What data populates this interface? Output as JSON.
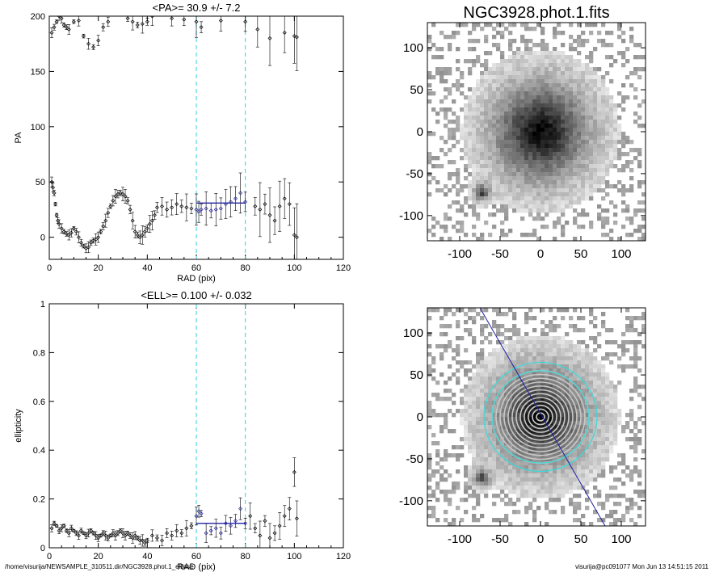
{
  "footer": {
    "path": "/home/visurija/NEWSAMPLE_310511.dir/NGC3928.phot.1_ellipse",
    "stamp": "visurija@pc091077  Mon Jun 13 14:51:15 2011"
  },
  "chart_data": [
    {
      "type": "scatter",
      "title": "<PA>=  30.9 +/-   7.2",
      "xlabel": "RAD (pix)",
      "ylabel": "PA",
      "xlim": [
        0,
        120
      ],
      "ylim": [
        -20,
        200
      ],
      "xticks": [
        0,
        20,
        40,
        60,
        80,
        100,
        120
      ],
      "yticks": [
        0,
        50,
        100,
        150,
        200
      ],
      "vlines": [
        60,
        80
      ],
      "fit": {
        "x": [
          60,
          80
        ],
        "y": 30.9
      },
      "series": [
        {
          "values": [
            [
              1,
              50
            ],
            [
              1.5,
              45
            ],
            [
              2,
              40
            ],
            [
              2.5,
              30
            ],
            [
              3,
              20
            ],
            [
              3.5,
              15
            ],
            [
              4,
              12
            ],
            [
              5,
              8
            ],
            [
              6,
              5
            ],
            [
              7,
              3
            ],
            [
              8,
              2
            ],
            [
              9,
              4
            ],
            [
              10,
              8
            ],
            [
              11,
              5
            ],
            [
              12,
              0
            ],
            [
              13,
              -5
            ],
            [
              14,
              -8
            ],
            [
              15,
              -10
            ],
            [
              16,
              -9
            ],
            [
              17,
              -5
            ],
            [
              18,
              -3
            ],
            [
              19,
              -2
            ],
            [
              20,
              0
            ],
            [
              21,
              5
            ],
            [
              22,
              10
            ],
            [
              23,
              15
            ],
            [
              24,
              22
            ],
            [
              25,
              28
            ],
            [
              26,
              33
            ],
            [
              27,
              37
            ],
            [
              28,
              39
            ],
            [
              29,
              40
            ],
            [
              30,
              39
            ],
            [
              31,
              37
            ],
            [
              32,
              33
            ],
            [
              33,
              25
            ],
            [
              34,
              15
            ],
            [
              35,
              5
            ],
            [
              36,
              2
            ],
            [
              37,
              0
            ],
            [
              38,
              2
            ],
            [
              39,
              5
            ],
            [
              40,
              8
            ],
            [
              41,
              12
            ],
            [
              42,
              15
            ],
            [
              43,
              20
            ],
            [
              44,
              27
            ],
            [
              46,
              28
            ],
            [
              48,
              25
            ],
            [
              50,
              27
            ],
            [
              52,
              30
            ],
            [
              54,
              28
            ],
            [
              56,
              27
            ],
            [
              58,
              26
            ],
            [
              60,
              25
            ],
            [
              61,
              23
            ],
            [
              62,
              25
            ],
            [
              64,
              26
            ],
            [
              66,
              24
            ],
            [
              68,
              25
            ],
            [
              70,
              26
            ],
            [
              72,
              30
            ],
            [
              74,
              32
            ],
            [
              76,
              35
            ],
            [
              78,
              40
            ],
            [
              80,
              32
            ],
            [
              84,
              28
            ],
            [
              86,
              25
            ],
            [
              88,
              30
            ],
            [
              90,
              20
            ],
            [
              92,
              15
            ],
            [
              94,
              28
            ],
            [
              96,
              35
            ],
            [
              98,
              30
            ],
            [
              100,
              2
            ],
            [
              101,
              0
            ]
          ]
        },
        {
          "values": [
            [
              1,
              185
            ],
            [
              2,
              190
            ],
            [
              3,
              195
            ],
            [
              4,
              200
            ],
            [
              5,
              198
            ],
            [
              6,
              192
            ],
            [
              7,
              190
            ],
            [
              8,
              188
            ],
            [
              10,
              195
            ],
            [
              12,
              196
            ],
            [
              14,
              182
            ],
            [
              16,
              175
            ],
            [
              18,
              172
            ],
            [
              20,
              178
            ],
            [
              22,
              190
            ],
            [
              24,
              195
            ],
            [
              32,
              198
            ],
            [
              34,
              195
            ],
            [
              36,
              192
            ],
            [
              38,
              193
            ],
            [
              40,
              195
            ],
            [
              42,
              200
            ],
            [
              50,
              198
            ],
            [
              55,
              197
            ],
            [
              60,
              195
            ],
            [
              62,
              190
            ],
            [
              70,
              196
            ],
            [
              80,
              195
            ],
            [
              85,
              188
            ],
            [
              90,
              180
            ],
            [
              96,
              185
            ],
            [
              100,
              182
            ],
            [
              101,
              181
            ]
          ]
        }
      ]
    },
    {
      "type": "scatter",
      "title": "<ELL>= 0.100 +/-  0.032",
      "xlabel": "RAD (pix)",
      "ylabel": "ellipticity",
      "xlim": [
        0,
        120
      ],
      "ylim": [
        0,
        1
      ],
      "xticks": [
        0,
        20,
        40,
        60,
        80,
        100,
        120
      ],
      "yticks": [
        0.0,
        0.2,
        0.4,
        0.6,
        0.8,
        1.0
      ],
      "vlines": [
        60,
        80
      ],
      "fit": {
        "x": [
          60,
          80
        ],
        "y": 0.1
      },
      "series": [
        {
          "values": [
            [
              1,
              0.08
            ],
            [
              2,
              0.1
            ],
            [
              3,
              0.09
            ],
            [
              4,
              0.07
            ],
            [
              5,
              0.08
            ],
            [
              6,
              0.09
            ],
            [
              7,
              0.07
            ],
            [
              8,
              0.06
            ],
            [
              9,
              0.08
            ],
            [
              10,
              0.07
            ],
            [
              11,
              0.06
            ],
            [
              12,
              0.05
            ],
            [
              13,
              0.07
            ],
            [
              14,
              0.06
            ],
            [
              15,
              0.05
            ],
            [
              16,
              0.06
            ],
            [
              17,
              0.07
            ],
            [
              18,
              0.06
            ],
            [
              19,
              0.05
            ],
            [
              20,
              0.04
            ],
            [
              21,
              0.05
            ],
            [
              22,
              0.06
            ],
            [
              23,
              0.05
            ],
            [
              24,
              0.04
            ],
            [
              25,
              0.05
            ],
            [
              26,
              0.06
            ],
            [
              27,
              0.05
            ],
            [
              28,
              0.06
            ],
            [
              29,
              0.07
            ],
            [
              30,
              0.06
            ],
            [
              31,
              0.05
            ],
            [
              32,
              0.06
            ],
            [
              33,
              0.05
            ],
            [
              34,
              0.04
            ],
            [
              35,
              0.05
            ],
            [
              36,
              0.04
            ],
            [
              37,
              0.03
            ],
            [
              38,
              0.03
            ],
            [
              39,
              0.02
            ],
            [
              40,
              0.03
            ],
            [
              42,
              0.05
            ],
            [
              44,
              0.04
            ],
            [
              46,
              0.03
            ],
            [
              48,
              0.06
            ],
            [
              50,
              0.05
            ],
            [
              52,
              0.07
            ],
            [
              54,
              0.06
            ],
            [
              56,
              0.08
            ],
            [
              58,
              0.09
            ],
            [
              60,
              0.13
            ],
            [
              61,
              0.15
            ],
            [
              62,
              0.14
            ],
            [
              64,
              0.06
            ],
            [
              66,
              0.07
            ],
            [
              68,
              0.08
            ],
            [
              70,
              0.06
            ],
            [
              72,
              0.1
            ],
            [
              74,
              0.09
            ],
            [
              76,
              0.11
            ],
            [
              78,
              0.16
            ],
            [
              80,
              0.1
            ],
            [
              82,
              0.13
            ],
            [
              84,
              0.08
            ],
            [
              86,
              0.05
            ],
            [
              88,
              0.11
            ],
            [
              90,
              0.04
            ],
            [
              92,
              0.06
            ],
            [
              94,
              0.09
            ],
            [
              96,
              0.13
            ],
            [
              98,
              0.16
            ],
            [
              100,
              0.31
            ],
            [
              101,
              0.12
            ]
          ]
        }
      ]
    },
    {
      "type": "heatmap",
      "title": "NGC3928.phot.1.fits",
      "xlim": [
        -140,
        130
      ],
      "ylim": [
        -130,
        130
      ],
      "xticks": [
        -100,
        -50,
        0,
        50,
        100
      ],
      "yticks": [
        -100,
        -50,
        0,
        50,
        100
      ],
      "sources": [
        {
          "x": 0,
          "y": 0,
          "peak": 1.0,
          "radius": 55
        },
        {
          "x": -73,
          "y": -73,
          "peak": 0.7,
          "radius": 9
        }
      ]
    },
    {
      "type": "heatmap",
      "xlim": [
        -140,
        130
      ],
      "ylim": [
        -130,
        130
      ],
      "xticks": [
        -100,
        -50,
        0,
        50,
        100
      ],
      "yticks": [
        -100,
        -50,
        0,
        50,
        100
      ],
      "sources": [
        {
          "x": 0,
          "y": 0,
          "peak": 1.0,
          "radius": 55
        },
        {
          "x": -73,
          "y": -73,
          "peak": 0.7,
          "radius": 9
        }
      ],
      "contour_radii": [
        5,
        10,
        15,
        20,
        25,
        30,
        35,
        40,
        45,
        50,
        55,
        60
      ],
      "outer_ellipses": [
        {
          "a": 60,
          "b": 55
        },
        {
          "a": 70,
          "b": 65
        }
      ],
      "major_axis": {
        "from": [
          -75,
          130
        ],
        "to": [
          80,
          -130
        ]
      },
      "colors": {
        "contour": "#c8c8c8",
        "ellipse": "#40d8d8",
        "axis": "#2020a0"
      }
    }
  ]
}
